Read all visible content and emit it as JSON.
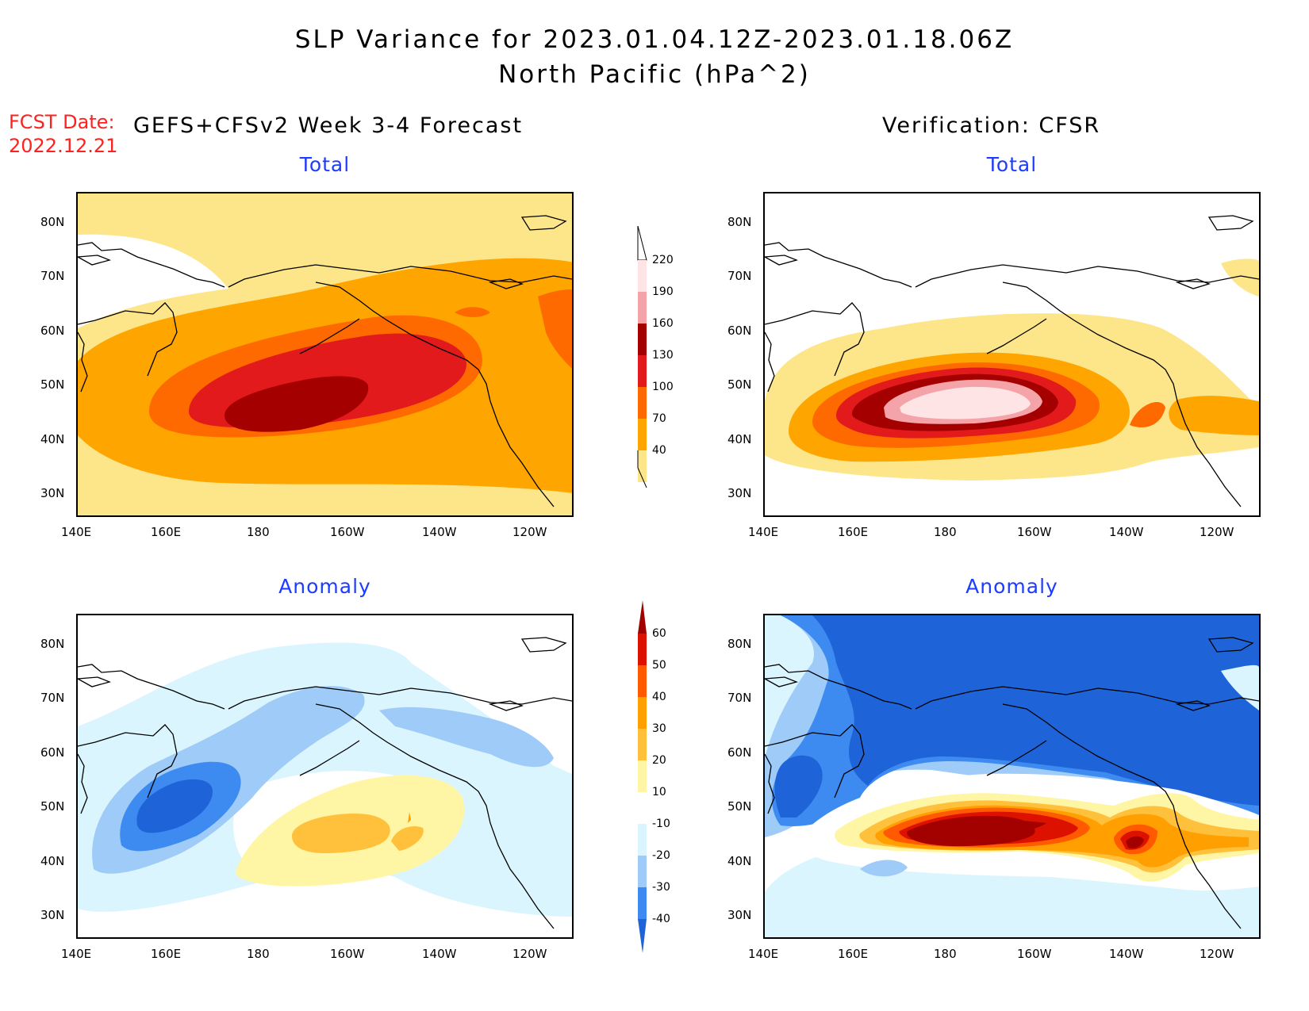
{
  "title": {
    "line1": "SLP Variance for 2023.01.04.12Z-2023.01.18.06Z",
    "line2": "North Pacific (hPa^2)"
  },
  "fcst": {
    "label": "FCST Date:",
    "date": "2022.12.21"
  },
  "left_header": "GEFS+CFSv2 Week 3-4 Forecast",
  "right_header": "Verification: CFSR",
  "panels": [
    {
      "id": "fcst-total",
      "subtitle": "Total"
    },
    {
      "id": "obs-total",
      "subtitle": "Total"
    },
    {
      "id": "fcst-anomaly",
      "subtitle": "Anomaly"
    },
    {
      "id": "obs-anomaly",
      "subtitle": "Anomaly"
    }
  ],
  "lat_labels": [
    "80N",
    "70N",
    "60N",
    "50N",
    "40N",
    "30N"
  ],
  "lon_labels": [
    "140E",
    "160E",
    "180",
    "160W",
    "140W",
    "120W"
  ],
  "colorbar_total": {
    "levels": [
      "40",
      "70",
      "100",
      "130",
      "160",
      "190",
      "220"
    ],
    "colors": [
      "#fde68a",
      "#ffa500",
      "#ff6a00",
      "#e31a1c",
      "#a50000",
      "#f4a3a8",
      "#ffe4e6"
    ]
  },
  "colorbar_anomaly": {
    "levels": [
      "-40",
      "-30",
      "-20",
      "-10",
      "10",
      "20",
      "30",
      "40",
      "50",
      "60"
    ],
    "colors": [
      "#1e64d8",
      "#3d8af0",
      "#9ecbf7",
      "#dbf5ff",
      "#ffffff",
      "#fff6a5",
      "#ffc03c",
      "#ffa000",
      "#ff5a00",
      "#dd1100",
      "#a30000"
    ]
  }
}
